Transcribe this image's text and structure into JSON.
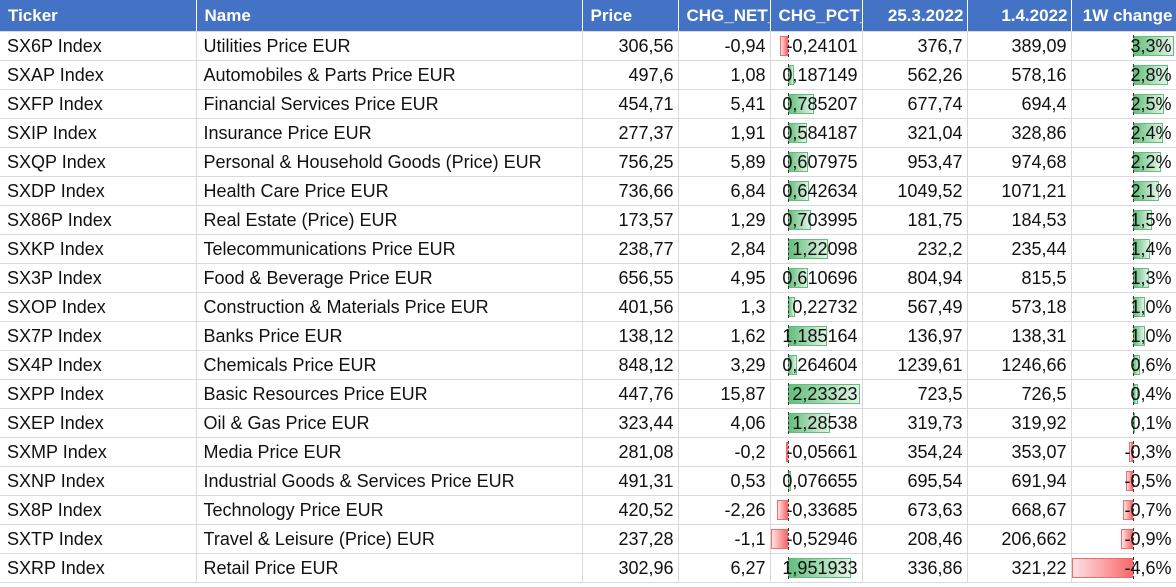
{
  "table": {
    "headers": [
      "Ticker",
      "Name",
      "Price",
      "CHG_NET_",
      "CHG_PCT_",
      "25.3.2022",
      "1.4.2022",
      "1W change"
    ],
    "rows": [
      {
        "ticker": "SX6P Index",
        "name": "Utilities Price EUR",
        "price": "306,56",
        "chg_net": "-0,94",
        "chg_pct": "-0,24101",
        "d1": "376,7",
        "d2": "389,09",
        "w1": "3,3%"
      },
      {
        "ticker": "SXAP Index",
        "name": "Automobiles & Parts Price EUR",
        "price": "497,6",
        "chg_net": "1,08",
        "chg_pct": "0,187149",
        "d1": "562,26",
        "d2": "578,16",
        "w1": "2,8%"
      },
      {
        "ticker": "SXFP Index",
        "name": "Financial Services Price EUR",
        "price": "454,71",
        "chg_net": "5,41",
        "chg_pct": "0,785207",
        "d1": "677,74",
        "d2": "694,4",
        "w1": "2,5%"
      },
      {
        "ticker": "SXIP Index",
        "name": "Insurance Price EUR",
        "price": "277,37",
        "chg_net": "1,91",
        "chg_pct": "0,584187",
        "d1": "321,04",
        "d2": "328,86",
        "w1": "2,4%"
      },
      {
        "ticker": "SXQP Index",
        "name": "Personal & Household Goods (Price) EUR",
        "price": "756,25",
        "chg_net": "5,89",
        "chg_pct": "0,607975",
        "d1": "953,47",
        "d2": "974,68",
        "w1": "2,2%"
      },
      {
        "ticker": "SXDP Index",
        "name": "Health Care Price EUR",
        "price": "736,66",
        "chg_net": "6,84",
        "chg_pct": "0,642634",
        "d1": "1049,52",
        "d2": "1071,21",
        "w1": "2,1%"
      },
      {
        "ticker": "SX86P Index",
        "name": "Real Estate (Price) EUR",
        "price": "173,57",
        "chg_net": "1,29",
        "chg_pct": "0,703995",
        "d1": "181,75",
        "d2": "184,53",
        "w1": "1,5%"
      },
      {
        "ticker": "SXKP Index",
        "name": "Telecommunications Price EUR",
        "price": "238,77",
        "chg_net": "2,84",
        "chg_pct": "1,22098",
        "d1": "232,2",
        "d2": "235,44",
        "w1": "1,4%"
      },
      {
        "ticker": "SX3P Index",
        "name": "Food & Beverage Price EUR",
        "price": "656,55",
        "chg_net": "4,95",
        "chg_pct": "0,610696",
        "d1": "804,94",
        "d2": "815,5",
        "w1": "1,3%"
      },
      {
        "ticker": "SXOP Index",
        "name": "Construction & Materials Price EUR",
        "price": "401,56",
        "chg_net": "1,3",
        "chg_pct": "0,22732",
        "d1": "567,49",
        "d2": "573,18",
        "w1": "1,0%"
      },
      {
        "ticker": "SX7P Index",
        "name": "Banks Price EUR",
        "price": "138,12",
        "chg_net": "1,62",
        "chg_pct": "1,185164",
        "d1": "136,97",
        "d2": "138,31",
        "w1": "1,0%"
      },
      {
        "ticker": "SX4P Index",
        "name": "Chemicals Price EUR",
        "price": "848,12",
        "chg_net": "3,29",
        "chg_pct": "0,264604",
        "d1": "1239,61",
        "d2": "1246,66",
        "w1": "0,6%"
      },
      {
        "ticker": "SXPP Index",
        "name": "Basic Resources Price EUR",
        "price": "447,76",
        "chg_net": "15,87",
        "chg_pct": "2,23323",
        "d1": "723,5",
        "d2": "726,5",
        "w1": "0,4%"
      },
      {
        "ticker": "SXEP Index",
        "name": "Oil & Gas Price EUR",
        "price": "323,44",
        "chg_net": "4,06",
        "chg_pct": "1,28538",
        "d1": "319,73",
        "d2": "319,92",
        "w1": "0,1%"
      },
      {
        "ticker": "SXMP Index",
        "name": "Media Price EUR",
        "price": "281,08",
        "chg_net": "-0,2",
        "chg_pct": "-0,05661",
        "d1": "354,24",
        "d2": "353,07",
        "w1": "-0,3%"
      },
      {
        "ticker": "SXNP Index",
        "name": "Industrial Goods & Services Price EUR",
        "price": "491,31",
        "chg_net": "0,53",
        "chg_pct": "0,076655",
        "d1": "695,54",
        "d2": "691,94",
        "w1": "-0,5%"
      },
      {
        "ticker": "SX8P Index",
        "name": "Technology Price EUR",
        "price": "420,52",
        "chg_net": "-2,26",
        "chg_pct": "-0,33685",
        "d1": "673,63",
        "d2": "668,67",
        "w1": "-0,7%"
      },
      {
        "ticker": "SXTP Index",
        "name": "Travel & Leisure (Price) EUR",
        "price": "237,28",
        "chg_net": "-1,1",
        "chg_pct": "-0,52946",
        "d1": "208,46",
        "d2": "206,662",
        "w1": "-0,9%"
      },
      {
        "ticker": "SXRP Index",
        "name": "Retail Price EUR",
        "price": "302,96",
        "chg_net": "6,27",
        "chg_pct": "1,951933",
        "d1": "336,86",
        "d2": "321,22",
        "w1": "-4,6%"
      }
    ]
  },
  "colors": {
    "header_bg": "#4472c4",
    "positive_bar": "#63be7b",
    "negative_bar": "#f8696b"
  }
}
